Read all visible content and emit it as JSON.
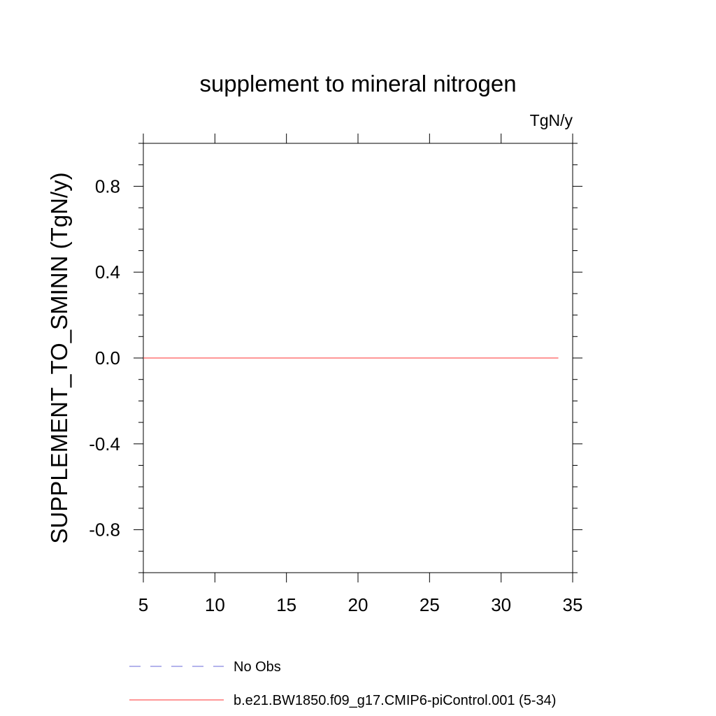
{
  "chart_data": {
    "type": "line",
    "title": "supplement to mineral nitrogen",
    "units_label": "TgN/y",
    "xlabel": "",
    "ylabel": "SUPPLEMENT_TO_SMINN  (TgN/y)",
    "xlim": [
      5,
      35
    ],
    "ylim": [
      -1.0,
      1.0
    ],
    "x_ticks": [
      5,
      10,
      15,
      20,
      25,
      30,
      35
    ],
    "x_tick_labels": [
      "5",
      "10",
      "15",
      "20",
      "25",
      "30",
      "35"
    ],
    "y_ticks": [
      0.8,
      0.4,
      0.0,
      -0.4,
      -0.8
    ],
    "y_tick_labels": [
      "0.8",
      "0.4",
      "0.0",
      "-0.4",
      "-0.8"
    ],
    "grid": false,
    "legend_position": "bottom",
    "series": [
      {
        "name": "No Obs",
        "color": "#6a6ad8",
        "dash": "dashed",
        "x": [],
        "y": []
      },
      {
        "name": "b.e21.BW1850.f09_g17.CMIP6-piControl.001 (5-34)",
        "color": "#ff3030",
        "dash": "solid",
        "x": [
          5,
          34
        ],
        "y": [
          0.0,
          0.0
        ]
      }
    ]
  }
}
